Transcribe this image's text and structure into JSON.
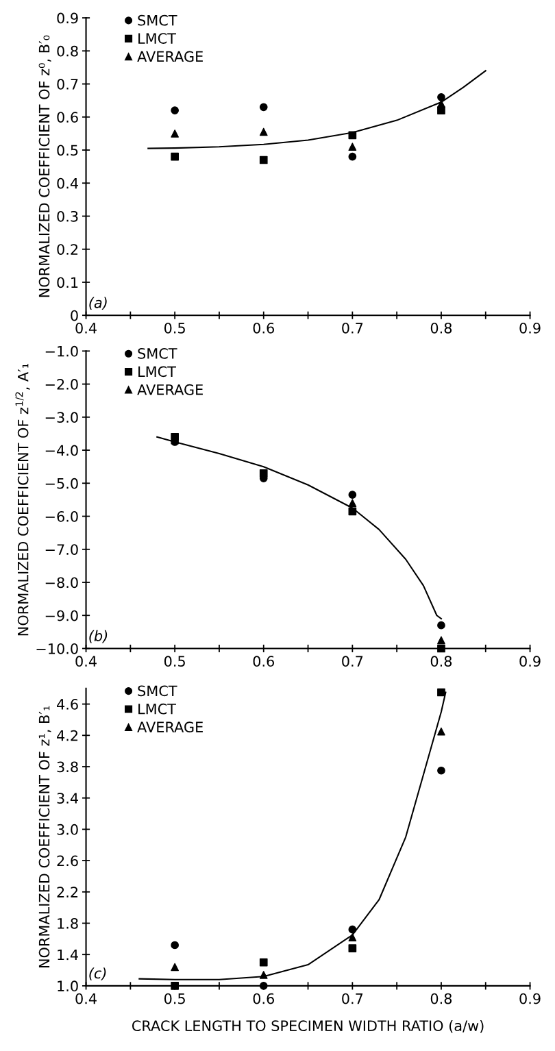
{
  "chart_data": [
    {
      "type": "scatter",
      "ylabel": "NORMALIZED COEFFICIENT OF z⁰, B′₀",
      "annotations": [
        "(a)"
      ],
      "xlim": [
        0.4,
        0.9
      ],
      "ylim": [
        0,
        0.9
      ],
      "xticks": [
        0.4,
        {
          "value": 0.45,
          "label": null
        },
        0.5,
        {
          "value": 0.55,
          "label": null
        },
        0.6,
        {
          "value": 0.65,
          "label": null
        },
        0.7,
        {
          "value": 0.75,
          "label": null
        },
        0.8,
        {
          "value": 0.85,
          "label": null
        },
        0.9
      ],
      "yticks": [
        0,
        0.1,
        0.2,
        0.3,
        0.4,
        0.5,
        0.6,
        0.7,
        0.8,
        0.9
      ],
      "legend": "top left",
      "grid": false,
      "series": [
        {
          "name": "SMCT",
          "marker": "circle",
          "color": "#000000",
          "x": [
            0.5,
            0.6,
            0.7,
            0.8
          ],
          "values": [
            0.62,
            0.63,
            0.48,
            0.66
          ]
        },
        {
          "name": "LMCT",
          "marker": "square",
          "color": "#000000",
          "x": [
            0.5,
            0.6,
            0.7,
            0.8
          ],
          "values": [
            0.48,
            0.47,
            0.545,
            0.62
          ]
        },
        {
          "name": "AVERAGE",
          "marker": "triangle",
          "color": "#000000",
          "x": [
            0.5,
            0.6,
            0.7,
            0.8
          ],
          "values": [
            0.55,
            0.555,
            0.51,
            0.64
          ]
        },
        {
          "type": "line",
          "color": "#000000",
          "x": [
            0.47,
            0.5,
            0.55,
            0.6,
            0.65,
            0.7,
            0.75,
            0.8,
            0.825,
            0.85
          ],
          "values": [
            0.505,
            0.506,
            0.51,
            0.517,
            0.53,
            0.553,
            0.59,
            0.645,
            0.69,
            0.74
          ]
        }
      ]
    },
    {
      "type": "scatter",
      "ylabel": "NORMALIZED COEFFICIENT OF z$^{1/2}$, A′₁",
      "annotations": [
        "(b)"
      ],
      "xlim": [
        0.4,
        0.9
      ],
      "ylim": [
        -10,
        -1
      ],
      "xticks": [
        0.4,
        {
          "value": 0.45,
          "label": null
        },
        0.5,
        {
          "value": 0.55,
          "label": null
        },
        0.6,
        {
          "value": 0.65,
          "label": null
        },
        0.7,
        {
          "value": 0.75,
          "label": null
        },
        0.8,
        {
          "value": 0.85,
          "label": null
        },
        0.9
      ],
      "yticks": [
        {
          "value": -1,
          "label": "−1.0"
        },
        {
          "value": -2,
          "label": "−2.0"
        },
        {
          "value": -3,
          "label": "−3.0"
        },
        {
          "value": -4,
          "label": "−4.0"
        },
        {
          "value": -5,
          "label": "−5.0"
        },
        {
          "value": -6,
          "label": "−6.0"
        },
        {
          "value": -7,
          "label": "−7.0"
        },
        {
          "value": -8,
          "label": "−8.0"
        },
        {
          "value": -9,
          "label": "−9.0"
        },
        {
          "value": -10,
          "label": "−10.0"
        }
      ],
      "legend": "top left",
      "grid": false,
      "series": [
        {
          "name": "SMCT",
          "marker": "circle",
          "color": "#000000",
          "x": [
            0.5,
            0.6,
            0.7,
            0.8
          ],
          "values": [
            -3.75,
            -4.85,
            -5.35,
            -9.3
          ]
        },
        {
          "name": "LMCT",
          "marker": "square",
          "color": "#000000",
          "x": [
            0.5,
            0.6,
            0.7,
            0.8
          ],
          "values": [
            -3.6,
            -4.7,
            -5.85,
            -10.0
          ]
        },
        {
          "name": "AVERAGE",
          "marker": "triangle",
          "color": "#000000",
          "x": [
            0.5,
            0.6,
            0.7,
            0.8
          ],
          "values": [
            -3.7,
            null,
            -5.6,
            -9.75
          ]
        },
        {
          "type": "line",
          "color": "#000000",
          "x": [
            0.48,
            0.5,
            0.55,
            0.6,
            0.65,
            0.7,
            0.73,
            0.76,
            0.78,
            0.795,
            0.8
          ],
          "values": [
            -3.6,
            -3.75,
            -4.1,
            -4.5,
            -5.05,
            -5.75,
            -6.4,
            -7.3,
            -8.1,
            -9.0,
            -9.1
          ]
        }
      ]
    },
    {
      "type": "scatter",
      "ylabel": "NORMALIZED COEFFICIENT OF z¹, B′₁",
      "xlabel": "CRACK LENGTH TO SPECIMEN WIDTH RATIO (a/w)",
      "annotations": [
        "(c)"
      ],
      "xlim": [
        0.4,
        0.9
      ],
      "ylim": [
        1.0,
        4.8
      ],
      "xticks": [
        0.4,
        {
          "value": 0.45,
          "label": null
        },
        0.5,
        {
          "value": 0.55,
          "label": null
        },
        0.6,
        {
          "value": 0.65,
          "label": null
        },
        0.7,
        {
          "value": 0.75,
          "label": null
        },
        0.8,
        {
          "value": 0.85,
          "label": null
        },
        0.9
      ],
      "yticks": [
        {
          "value": 1.0,
          "label": "1.0"
        },
        1.4,
        1.8,
        2.2,
        2.6,
        {
          "value": 3.0,
          "label": "3.0"
        },
        3.4,
        3.8,
        4.2,
        4.6
      ],
      "legend": "top left",
      "grid": false,
      "series": [
        {
          "name": "SMCT",
          "marker": "circle",
          "color": "#000000",
          "x": [
            0.5,
            0.6,
            0.7,
            0.8
          ],
          "values": [
            1.52,
            1.0,
            1.72,
            3.75
          ]
        },
        {
          "name": "LMCT",
          "marker": "square",
          "color": "#000000",
          "x": [
            0.5,
            0.6,
            0.7,
            0.8
          ],
          "values": [
            1.0,
            1.3,
            1.48,
            4.75
          ]
        },
        {
          "name": "AVERAGE",
          "marker": "triangle",
          "color": "#000000",
          "x": [
            0.5,
            0.6,
            0.7,
            0.8
          ],
          "values": [
            1.24,
            1.14,
            1.62,
            4.25
          ]
        },
        {
          "type": "line",
          "color": "#000000",
          "x": [
            0.46,
            0.5,
            0.55,
            0.6,
            0.65,
            0.7,
            0.73,
            0.76,
            0.78,
            0.8,
            0.805
          ],
          "values": [
            1.09,
            1.08,
            1.08,
            1.12,
            1.27,
            1.65,
            2.1,
            2.9,
            3.7,
            4.5,
            4.75
          ]
        }
      ]
    }
  ]
}
